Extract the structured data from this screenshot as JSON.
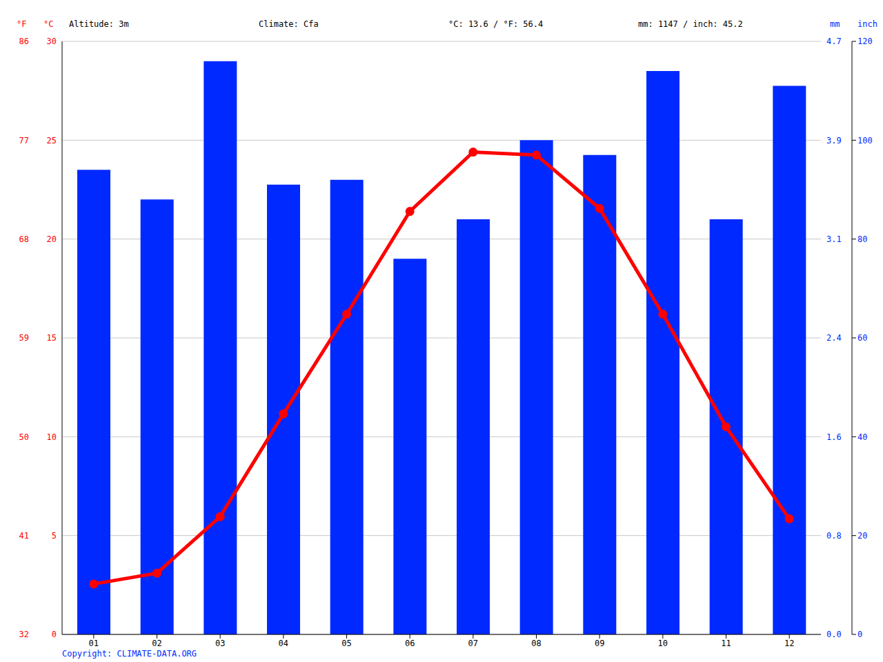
{
  "chart_data": {
    "type": "combo",
    "annotations": [
      "Altitude: 3m",
      "Climate: Cfa",
      "°C: 13.6 / °F: 56.4",
      "mm: 1147 / inch: 45.2"
    ],
    "source": "Copyright: CLIMATE-DATA.ORG",
    "categories": [
      "01",
      "02",
      "03",
      "04",
      "05",
      "06",
      "07",
      "08",
      "09",
      "10",
      "11",
      "12"
    ],
    "series": [
      {
        "type": "bar",
        "color": "#0029ff",
        "axis": "y2",
        "values": [
          94,
          88,
          116,
          91,
          92,
          76,
          84,
          100,
          97,
          114,
          84,
          111
        ]
      },
      {
        "type": "line",
        "color": "#ff0000",
        "axis": "y",
        "marker": "circle",
        "values": [
          2.55,
          3.1,
          5.96,
          11.16,
          16.2,
          21.4,
          24.4,
          24.25,
          21.55,
          16.2,
          10.5,
          5.85
        ]
      }
    ],
    "y_label": "°C",
    "ylim": [
      0,
      30
    ],
    "yticks": [
      0,
      5,
      10,
      15,
      20,
      25,
      30
    ],
    "y_alt": {
      "label": "°F",
      "lim": [
        32,
        86
      ],
      "ticks": [
        32,
        41,
        50,
        59,
        68,
        77,
        86
      ]
    },
    "y2_label": "mm",
    "y2lim": [
      0,
      120
    ],
    "y2ticks": [
      0,
      20,
      40,
      60,
      80,
      100,
      120
    ],
    "y2_alt": {
      "label": "inch",
      "lim": [
        0,
        4.724
      ],
      "ticks": [
        {
          "value": 0,
          "label": "0.0"
        },
        {
          "value": 0.787,
          "label": "0.8"
        },
        {
          "value": 1.575,
          "label": "1.6"
        },
        {
          "value": 2.362,
          "label": "2.4"
        },
        {
          "value": 3.1496,
          "label": "3.1"
        },
        {
          "value": 3.937,
          "label": "3.9"
        },
        {
          "value": 4.724,
          "label": "4.7"
        }
      ]
    },
    "grid": true
  }
}
